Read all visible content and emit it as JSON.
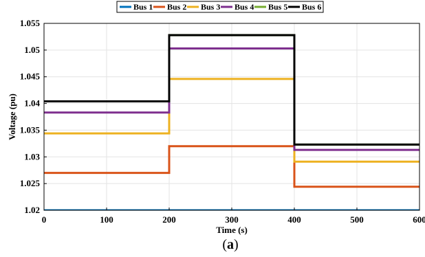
{
  "chart_data": {
    "type": "line",
    "step": true,
    "xlabel": "Time (s)",
    "ylabel": "Voltage (pu)",
    "xlim": [
      0,
      600
    ],
    "ylim": [
      1.02,
      1.055
    ],
    "xticks": [
      0,
      100,
      200,
      300,
      400,
      500,
      600
    ],
    "xtick_labels": [
      "0",
      "100",
      "200",
      "300",
      "400",
      "500",
      "600"
    ],
    "yticks": [
      1.02,
      1.025,
      1.03,
      1.035,
      1.04,
      1.045,
      1.05,
      1.055
    ],
    "ytick_labels": [
      "1.02",
      "1.025",
      "1.03",
      "1.035",
      "1.04",
      "1.045",
      "1.05",
      "1.055"
    ],
    "grid": true,
    "legend": {
      "placement": "top",
      "orientation": "horizontal"
    },
    "x": [
      0,
      200,
      400,
      600
    ],
    "series": [
      {
        "name": "Bus 1",
        "color": "#0072bd",
        "values": [
          1.02,
          1.02,
          1.02,
          1.02
        ]
      },
      {
        "name": "Bus 2",
        "color": "#d95319",
        "values": [
          1.027,
          1.032,
          1.0244,
          1.0244
        ]
      },
      {
        "name": "Bus 3",
        "color": "#edb120",
        "values": [
          1.0344,
          1.0446,
          1.0291,
          1.0291
        ]
      },
      {
        "name": "Bus 4",
        "color": "#7e2f8e",
        "values": [
          1.0383,
          1.0503,
          1.0313,
          1.0313
        ]
      },
      {
        "name": "Bus 5",
        "color": "#77ac30",
        "values": [
          1.0404,
          1.0528,
          1.0323,
          1.0323
        ]
      },
      {
        "name": "Bus 6",
        "color": "#000000",
        "values": [
          1.0404,
          1.0528,
          1.0323,
          1.0323
        ]
      }
    ]
  },
  "caption": {
    "open": "(",
    "letter": "a",
    "close": ")"
  }
}
